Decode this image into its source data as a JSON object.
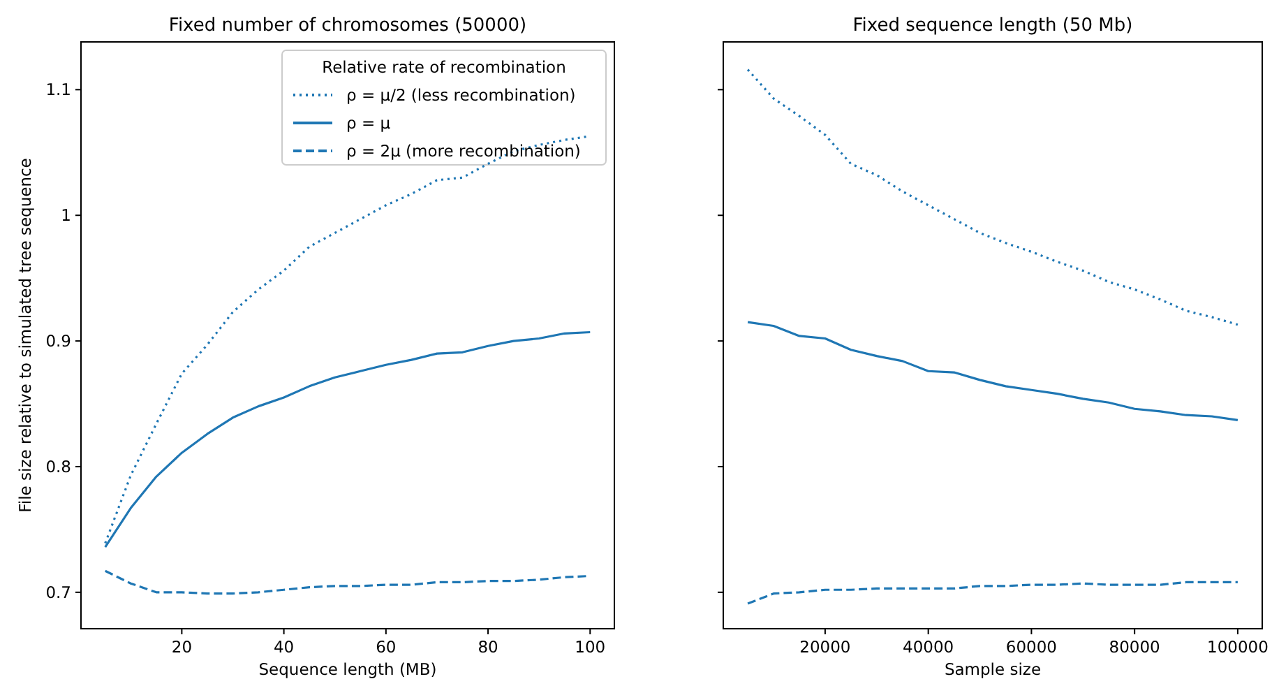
{
  "chart_data": [
    {
      "type": "line",
      "title": "Fixed number of chromosomes (50000)",
      "xlabel": "Sequence length (MB)",
      "ylabel": "File size relative to simulated tree sequence",
      "legend_title": "Relative rate of recombination",
      "legend": "top right",
      "grid": false,
      "xlim": [
        0.25,
        104.75
      ],
      "xticks": [
        20,
        40,
        60,
        80,
        100
      ],
      "ylim": [
        0.671,
        1.138
      ],
      "yticks": [
        0.7,
        0.8,
        0.9,
        1.0,
        1.1
      ],
      "x": [
        5,
        10,
        15,
        20,
        25,
        30,
        35,
        40,
        45,
        50,
        55,
        60,
        65,
        70,
        75,
        80,
        85,
        90,
        95,
        100
      ],
      "series": [
        {
          "name": "ρ = μ/2 (less recombination)",
          "color": "#1f77b4",
          "line_style": "dotted",
          "values": [
            0.739,
            0.793,
            0.834,
            0.874,
            0.897,
            0.923,
            0.941,
            0.956,
            0.975,
            0.986,
            0.997,
            1.008,
            1.017,
            1.028,
            1.03,
            1.041,
            1.051,
            1.056,
            1.06,
            1.063
          ]
        },
        {
          "name": "ρ = μ",
          "color": "#1f77b4",
          "line_style": "solid",
          "values": [
            0.736,
            0.767,
            0.792,
            0.811,
            0.826,
            0.839,
            0.848,
            0.855,
            0.864,
            0.871,
            0.876,
            0.881,
            0.885,
            0.89,
            0.891,
            0.896,
            0.9,
            0.902,
            0.906,
            0.907
          ]
        },
        {
          "name": "ρ = 2μ (more recombination)",
          "color": "#1f77b4",
          "line_style": "dashed",
          "values": [
            0.717,
            0.707,
            0.7,
            0.7,
            0.699,
            0.699,
            0.7,
            0.702,
            0.704,
            0.705,
            0.705,
            0.706,
            0.706,
            0.708,
            0.708,
            0.709,
            0.709,
            0.71,
            0.712,
            0.713
          ]
        }
      ]
    },
    {
      "type": "line",
      "title": "Fixed sequence length (50 Mb)",
      "xlabel": "Sample size",
      "tick_labels": "x",
      "grid": false,
      "xlim": [
        250,
        104750
      ],
      "xticks": [
        20000,
        40000,
        60000,
        80000,
        100000
      ],
      "ylim": [
        0.671,
        1.138
      ],
      "yticks": [
        0.7,
        0.8,
        0.9,
        1.0,
        1.1
      ],
      "x": [
        5000,
        10000,
        15000,
        20000,
        25000,
        30000,
        35000,
        40000,
        45000,
        50000,
        55000,
        60000,
        65000,
        70000,
        75000,
        80000,
        85000,
        90000,
        95000,
        100000
      ],
      "series": [
        {
          "color": "#1f77b4",
          "line_style": "dotted",
          "values": [
            1.116,
            1.093,
            1.079,
            1.064,
            1.041,
            1.032,
            1.019,
            1.008,
            0.997,
            0.986,
            0.978,
            0.971,
            0.963,
            0.956,
            0.947,
            0.941,
            0.933,
            0.924,
            0.919,
            0.913
          ]
        },
        {
          "color": "#1f77b4",
          "line_style": "solid",
          "values": [
            0.915,
            0.912,
            0.904,
            0.902,
            0.893,
            0.888,
            0.884,
            0.876,
            0.875,
            0.869,
            0.864,
            0.861,
            0.858,
            0.854,
            0.851,
            0.846,
            0.844,
            0.841,
            0.84,
            0.837
          ]
        },
        {
          "color": "#1f77b4",
          "line_style": "dashed",
          "values": [
            0.691,
            0.699,
            0.7,
            0.702,
            0.702,
            0.703,
            0.703,
            0.703,
            0.703,
            0.705,
            0.705,
            0.706,
            0.706,
            0.707,
            0.706,
            0.706,
            0.706,
            0.708,
            0.708,
            0.708
          ]
        }
      ]
    }
  ]
}
